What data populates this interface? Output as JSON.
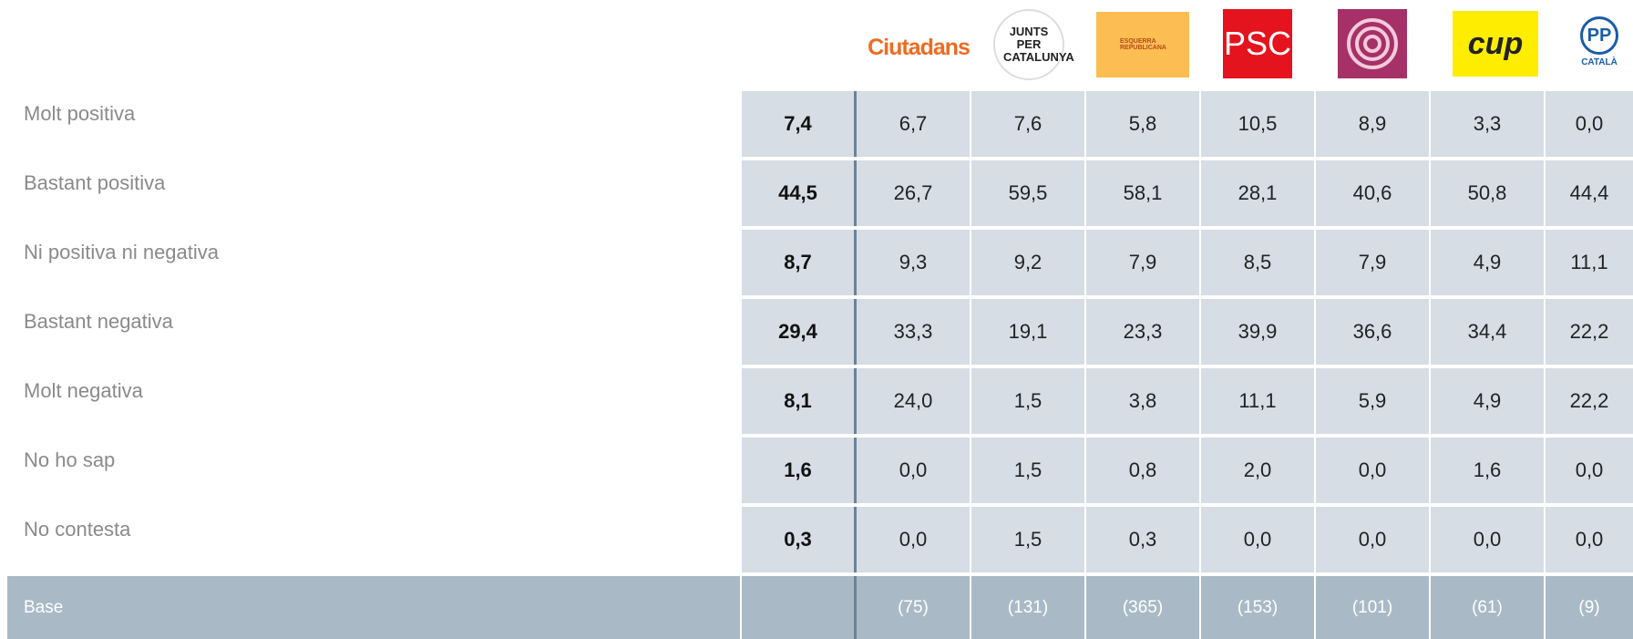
{
  "header": {
    "logos": [
      "Ciutadans",
      "JUNTS PER CATALUNYA",
      "ESQUERRA REPUBLICANA",
      "PSC",
      "cup",
      "PP",
      "CATALÀ"
    ]
  },
  "table": {
    "rows": [
      {
        "label": "Molt positiva",
        "total": "7,4",
        "values": [
          "6,7",
          "7,6",
          "5,8",
          "10,5",
          "8,9",
          "3,3",
          "0,0"
        ]
      },
      {
        "label": "Bastant positiva",
        "total": "44,5",
        "values": [
          "26,7",
          "59,5",
          "58,1",
          "28,1",
          "40,6",
          "50,8",
          "44,4"
        ]
      },
      {
        "label": "Ni positiva ni negativa",
        "total": "8,7",
        "values": [
          "9,3",
          "9,2",
          "7,9",
          "8,5",
          "7,9",
          "4,9",
          "11,1"
        ]
      },
      {
        "label": "Bastant negativa",
        "total": "29,4",
        "values": [
          "33,3",
          "19,1",
          "23,3",
          "39,9",
          "36,6",
          "34,4",
          "22,2"
        ]
      },
      {
        "label": "Molt negativa",
        "total": "8,1",
        "values": [
          "24,0",
          "1,5",
          "3,8",
          "11,1",
          "5,9",
          "4,9",
          "22,2"
        ]
      },
      {
        "label": "No ho sap",
        "total": "1,6",
        "values": [
          "0,0",
          "1,5",
          "0,8",
          "2,0",
          "0,0",
          "1,6",
          "0,0"
        ]
      },
      {
        "label": "No contesta",
        "total": "0,3",
        "values": [
          "0,0",
          "1,5",
          "0,3",
          "0,0",
          "0,0",
          "0,0",
          "0,0"
        ]
      }
    ],
    "base": {
      "label": "Base",
      "values": [
        "(75)",
        "(131)",
        "(365)",
        "(153)",
        "(101)",
        "(61)",
        "(9)"
      ]
    }
  }
}
